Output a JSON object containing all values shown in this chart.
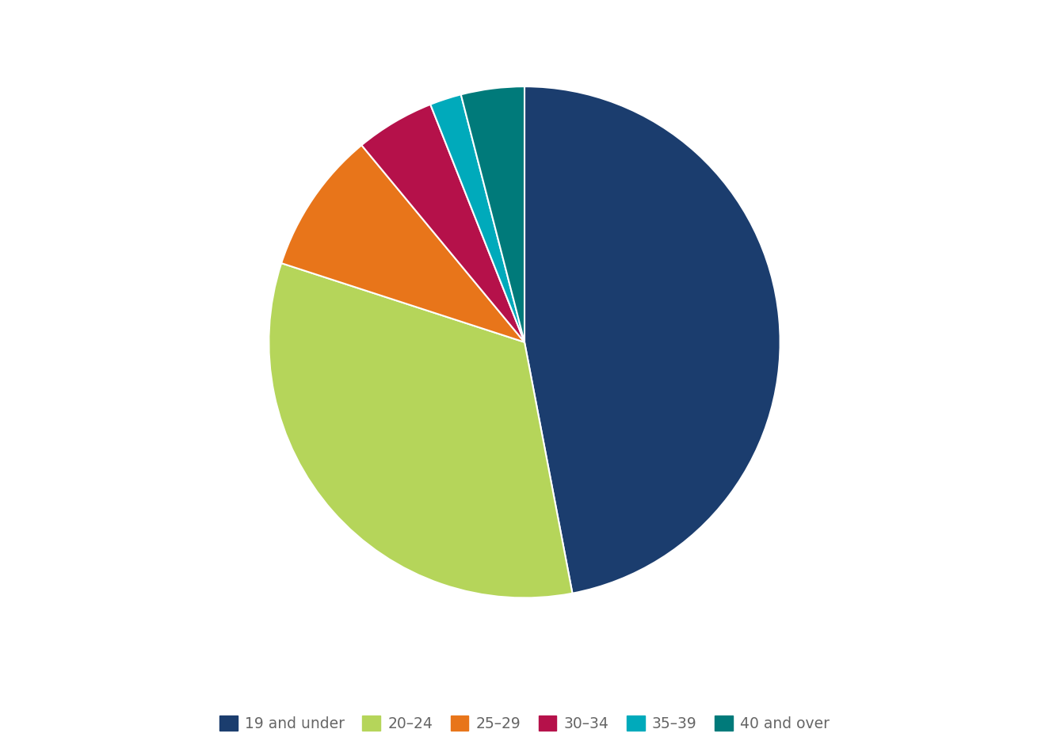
{
  "labels": [
    "19 and under",
    "20–24",
    "25–29",
    "30–34",
    "35–39",
    "40 and over"
  ],
  "values": [
    47,
    33,
    9,
    5,
    2,
    4
  ],
  "colors": [
    "#1b3d6e",
    "#b5d55a",
    "#e8751a",
    "#b5114a",
    "#00aabb",
    "#007a7a"
  ],
  "background_color": "#ffffff",
  "legend_fontsize": 13.5,
  "startangle": 90
}
